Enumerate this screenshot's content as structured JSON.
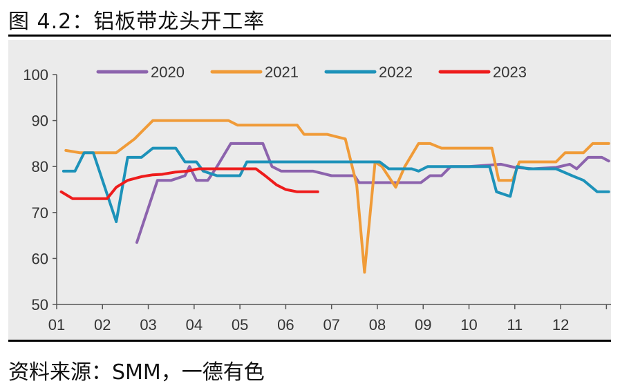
{
  "figure": {
    "title": "图 4.2：铝板带龙头开工率",
    "source": "资料来源：SMM，一德有色"
  },
  "chart_data": {
    "type": "line",
    "title": "",
    "xlabel": "",
    "ylabel": "",
    "x_ticks": [
      "01",
      "02",
      "03",
      "04",
      "05",
      "06",
      "07",
      "08",
      "09",
      "10",
      "11",
      "12"
    ],
    "y_ticks": [
      50,
      60,
      70,
      80,
      90,
      100
    ],
    "ylim": [
      50,
      100
    ],
    "xlim": [
      1,
      13.1
    ],
    "grid": false,
    "legend_position": "top",
    "series": [
      {
        "name": "2020",
        "color": "#8c63ad",
        "points": [
          [
            2.75,
            63.5
          ],
          [
            3.2,
            77
          ],
          [
            3.5,
            77
          ],
          [
            3.8,
            78
          ],
          [
            3.9,
            80
          ],
          [
            4.05,
            77
          ],
          [
            4.3,
            77
          ],
          [
            4.5,
            80
          ],
          [
            4.8,
            85
          ],
          [
            5.5,
            85
          ],
          [
            5.7,
            80
          ],
          [
            5.9,
            79
          ],
          [
            6.6,
            79
          ],
          [
            7.0,
            78
          ],
          [
            7.5,
            78
          ],
          [
            7.6,
            76.5
          ],
          [
            8.5,
            76.5
          ],
          [
            8.95,
            76.5
          ],
          [
            9.15,
            78
          ],
          [
            9.4,
            78
          ],
          [
            9.6,
            80
          ],
          [
            10.0,
            80
          ],
          [
            10.7,
            80.5
          ],
          [
            11.0,
            79.8
          ],
          [
            11.4,
            79.5
          ],
          [
            11.9,
            79.8
          ],
          [
            12.2,
            80.5
          ],
          [
            12.35,
            79.5
          ],
          [
            12.6,
            82
          ],
          [
            12.9,
            82
          ],
          [
            13.05,
            81.2
          ]
        ]
      },
      {
        "name": "2021",
        "color": "#f09b38",
        "points": [
          [
            1.2,
            83.5
          ],
          [
            1.5,
            83
          ],
          [
            2.3,
            83
          ],
          [
            2.7,
            86
          ],
          [
            2.9,
            88
          ],
          [
            3.1,
            90
          ],
          [
            4.75,
            90
          ],
          [
            4.95,
            89
          ],
          [
            5.85,
            89
          ],
          [
            6.25,
            89
          ],
          [
            6.4,
            87
          ],
          [
            6.9,
            87
          ],
          [
            7.1,
            86.5
          ],
          [
            7.3,
            86
          ],
          [
            7.55,
            76
          ],
          [
            7.72,
            57
          ],
          [
            7.95,
            81
          ],
          [
            8.1,
            80
          ],
          [
            8.4,
            75.5
          ],
          [
            8.6,
            80
          ],
          [
            8.9,
            85
          ],
          [
            9.15,
            85
          ],
          [
            9.4,
            84
          ],
          [
            10.5,
            84
          ],
          [
            10.65,
            77
          ],
          [
            10.95,
            77
          ],
          [
            11.1,
            81
          ],
          [
            11.9,
            81
          ],
          [
            12.1,
            83
          ],
          [
            12.5,
            83
          ],
          [
            12.7,
            85
          ],
          [
            13.05,
            85
          ]
        ]
      },
      {
        "name": "2022",
        "color": "#1d92b9",
        "points": [
          [
            1.15,
            79
          ],
          [
            1.4,
            79
          ],
          [
            1.6,
            83
          ],
          [
            1.8,
            83
          ],
          [
            2.0,
            77
          ],
          [
            2.3,
            68
          ],
          [
            2.55,
            82
          ],
          [
            2.85,
            82
          ],
          [
            3.1,
            84
          ],
          [
            3.6,
            84
          ],
          [
            3.8,
            81
          ],
          [
            4.05,
            81
          ],
          [
            4.2,
            79
          ],
          [
            4.5,
            78
          ],
          [
            5.0,
            78
          ],
          [
            5.15,
            81
          ],
          [
            6.0,
            81
          ],
          [
            7.5,
            81
          ],
          [
            8.05,
            81
          ],
          [
            8.25,
            79.5
          ],
          [
            8.75,
            79.5
          ],
          [
            8.9,
            79
          ],
          [
            9.1,
            80
          ],
          [
            10.1,
            80
          ],
          [
            10.45,
            80
          ],
          [
            10.6,
            74.5
          ],
          [
            10.9,
            73.5
          ],
          [
            11.05,
            80
          ],
          [
            11.3,
            79.5
          ],
          [
            11.9,
            79.5
          ],
          [
            12.25,
            78
          ],
          [
            12.5,
            77
          ],
          [
            12.8,
            74.5
          ],
          [
            13.05,
            74.5
          ]
        ]
      },
      {
        "name": "2023",
        "color": "#ee1c1c",
        "points": [
          [
            1.1,
            74.5
          ],
          [
            1.35,
            73
          ],
          [
            1.7,
            73
          ],
          [
            2.1,
            73
          ],
          [
            2.3,
            75.5
          ],
          [
            2.55,
            77
          ],
          [
            2.85,
            77.8
          ],
          [
            3.1,
            78.2
          ],
          [
            3.3,
            78.3
          ],
          [
            3.6,
            78.8
          ],
          [
            3.85,
            79
          ],
          [
            4.1,
            79.5
          ],
          [
            5.35,
            79.5
          ],
          [
            5.55,
            78
          ],
          [
            5.8,
            76
          ],
          [
            6.0,
            75
          ],
          [
            6.25,
            74.5
          ],
          [
            6.7,
            74.5
          ]
        ]
      }
    ]
  }
}
